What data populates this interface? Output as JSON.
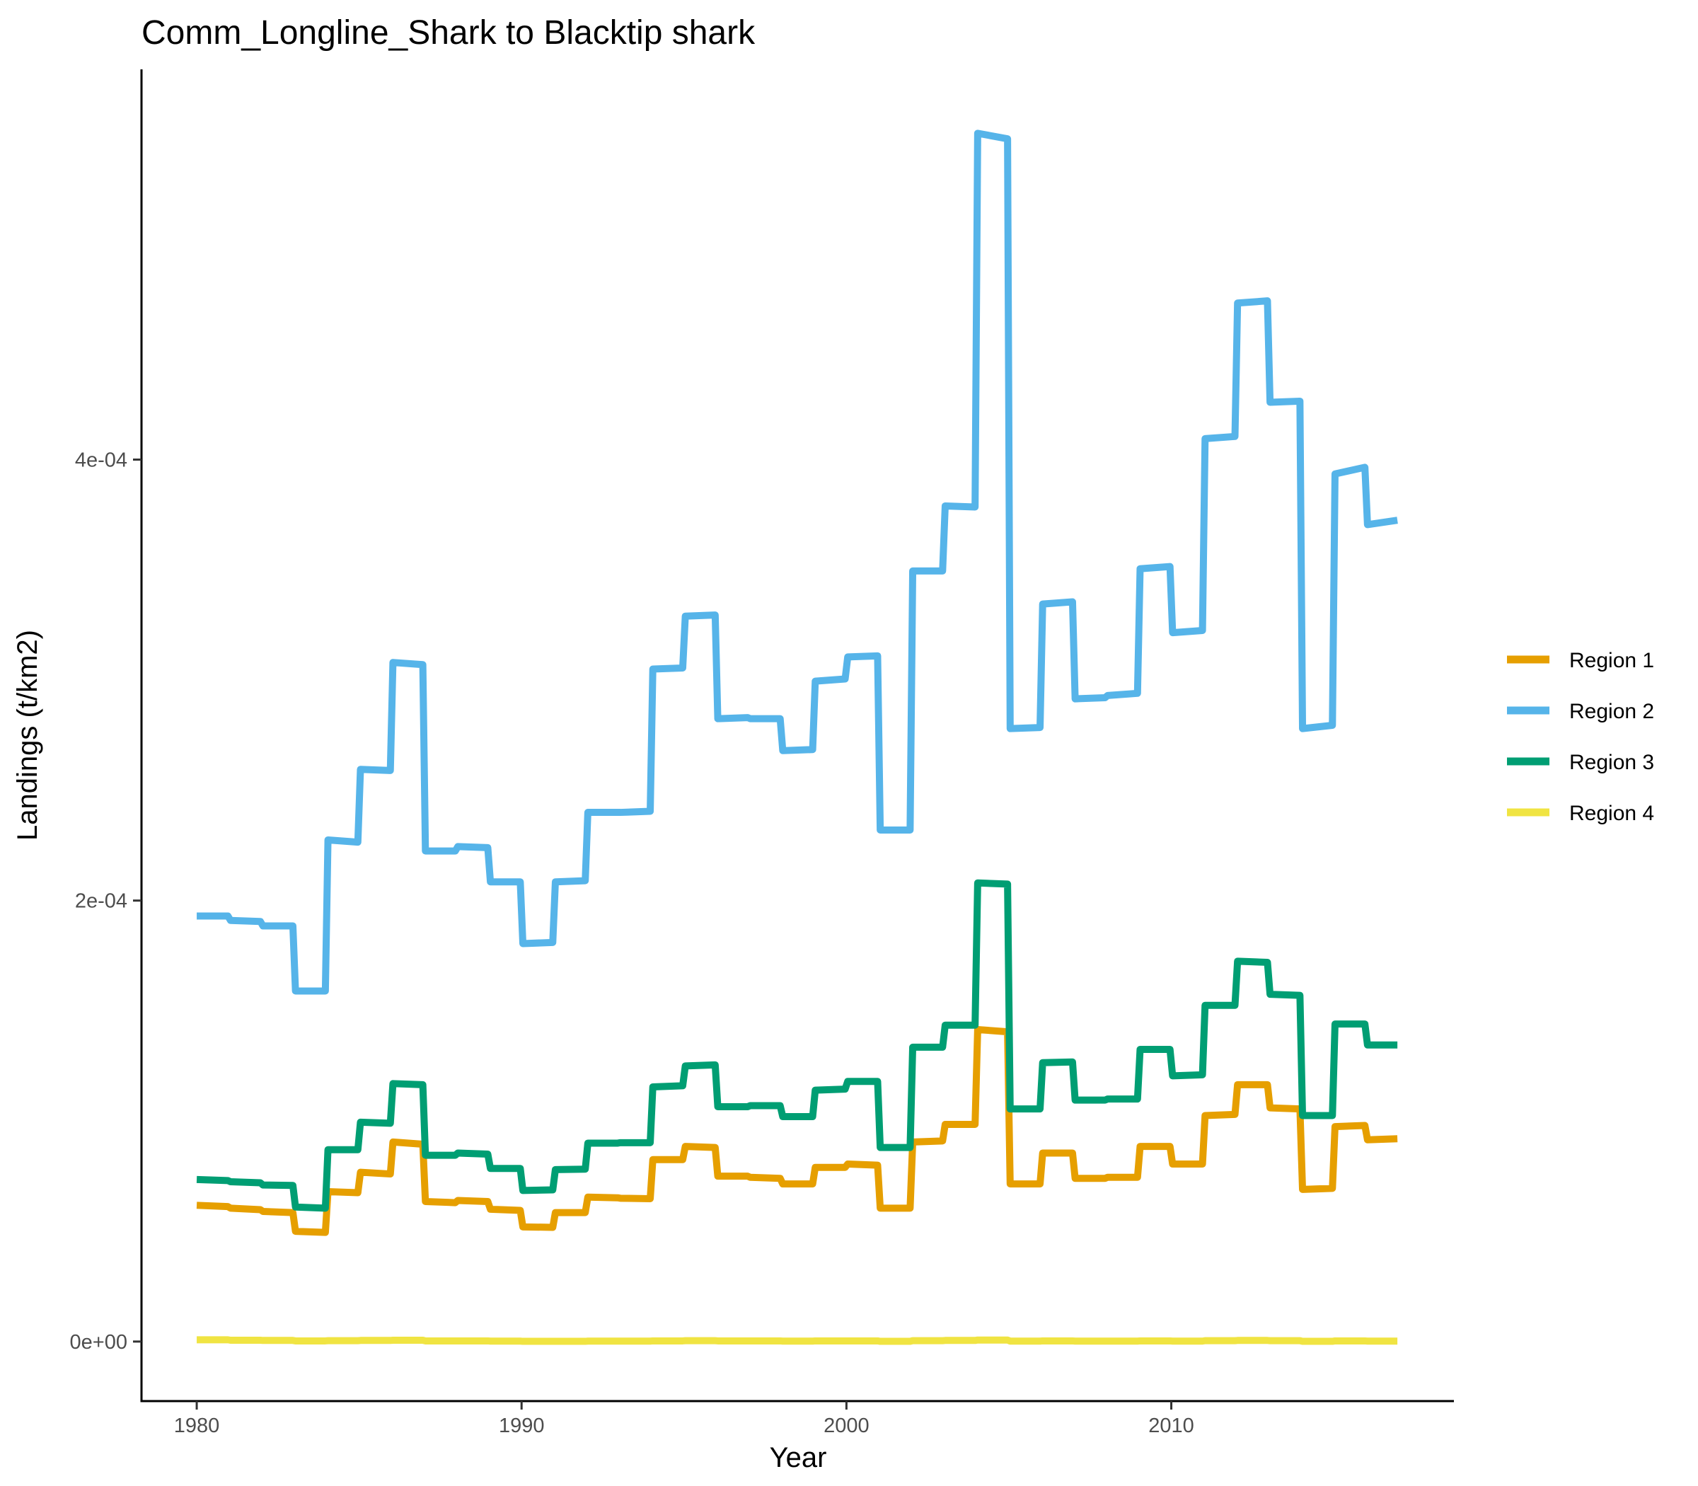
{
  "chart_data": {
    "type": "line",
    "title": "Comm_Longline_Shark to Blacktip shark",
    "xlabel": "Year",
    "ylabel": "Landings (t/km2)",
    "xlim": [
      1978.3,
      2018.7
    ],
    "ylim": [
      -2.7e-05,
      0.000577
    ],
    "x_ticks": [
      1980,
      1990,
      2000,
      2010
    ],
    "x_tick_labels": [
      "1980",
      "1990",
      "2000",
      "2010"
    ],
    "y_ticks": [
      0,
      0.0002,
      0.0004
    ],
    "y_tick_labels": [
      "0e+00",
      "2e-04",
      "4e-04"
    ],
    "grid": false,
    "legend_position": "right",
    "x": [
      1980.0,
      1980.96,
      1981.04,
      1981.96,
      1982.04,
      1982.96,
      1983.04,
      1983.96,
      1984.04,
      1984.96,
      1985.04,
      1985.96,
      1986.04,
      1986.96,
      1987.04,
      1987.96,
      1988.04,
      1988.96,
      1989.04,
      1989.96,
      1990.04,
      1990.96,
      1991.04,
      1991.96,
      1992.04,
      1992.96,
      1993.04,
      1993.96,
      1994.04,
      1994.96,
      1995.04,
      1995.96,
      1996.04,
      1996.96,
      1997.04,
      1997.96,
      1998.04,
      1998.96,
      1999.04,
      1999.96,
      2000.04,
      2000.96,
      2001.04,
      2001.96,
      2002.04,
      2002.96,
      2003.04,
      2003.96,
      2004.04,
      2004.96,
      2005.04,
      2005.96,
      2006.04,
      2006.96,
      2007.04,
      2007.96,
      2008.04,
      2008.96,
      2009.04,
      2009.96,
      2010.04,
      2010.96,
      2011.04,
      2011.96,
      2012.04,
      2012.96,
      2013.04,
      2013.96,
      2014.04,
      2014.96,
      2015.04,
      2015.96,
      2016.04,
      2016.96
    ],
    "series": [
      {
        "name": "Region 1",
        "color": "#E69F00",
        "values": [
          6.18e-05,
          6.12e-05,
          6.05e-05,
          5.98e-05,
          5.9e-05,
          5.85e-05,
          5e-05,
          4.95e-05,
          6.8e-05,
          6.75e-05,
          7.68e-05,
          7.6e-05,
          9.05e-05,
          8.95e-05,
          6.35e-05,
          6.3e-05,
          6.4e-05,
          6.35e-05,
          6e-05,
          5.95e-05,
          5.2e-05,
          5.18e-05,
          5.85e-05,
          5.85e-05,
          6.55e-05,
          6.52e-05,
          6.5e-05,
          6.48e-05,
          8.25e-05,
          8.25e-05,
          8.85e-05,
          8.8e-05,
          7.5e-05,
          7.5e-05,
          7.45e-05,
          7.4e-05,
          7.15e-05,
          7.15e-05,
          7.9e-05,
          7.9e-05,
          8.05e-05,
          8e-05,
          6.05e-05,
          6.05e-05,
          9.05e-05,
          9.1e-05,
          9.85e-05,
          9.85e-05,
          0.0001415,
          0.0001405,
          7.15e-05,
          7.15e-05,
          8.55e-05,
          8.55e-05,
          7.4e-05,
          7.4e-05,
          7.45e-05,
          7.45e-05,
          8.85e-05,
          8.85e-05,
          8.05e-05,
          8.05e-05,
          0.0001025,
          0.000103,
          0.0001165,
          0.0001165,
          0.000106,
          0.0001055,
          6.9e-05,
          6.95e-05,
          9.75e-05,
          9.8e-05,
          9.15e-05,
          9.2e-05
        ]
      },
      {
        "name": "Region 2",
        "color": "#56B4E9",
        "values": [
          0.000193,
          0.000193,
          0.000191,
          0.0001905,
          0.0001885,
          0.0001885,
          0.000159,
          0.000159,
          0.0002275,
          0.0002265,
          0.0002595,
          0.000259,
          0.000308,
          0.000307,
          0.0002225,
          0.0002225,
          0.0002245,
          0.000224,
          0.0002085,
          0.0002085,
          0.0001805,
          0.000181,
          0.0002085,
          0.000209,
          0.00024,
          0.00024,
          0.00024,
          0.0002405,
          0.000305,
          0.0003055,
          0.000329,
          0.0003295,
          0.0002825,
          0.000283,
          0.0002825,
          0.0002825,
          0.000268,
          0.0002685,
          0.0002995,
          0.0003005,
          0.0003105,
          0.000311,
          0.000232,
          0.000232,
          0.0003495,
          0.0003495,
          0.000379,
          0.0003785,
          0.000548,
          0.0005455,
          0.000278,
          0.0002785,
          0.0003345,
          0.0003355,
          0.0002915,
          0.000292,
          0.000293,
          0.000294,
          0.0003505,
          0.0003515,
          0.0003215,
          0.0003225,
          0.0004095,
          0.0004105,
          0.000471,
          0.000472,
          0.000426,
          0.0004265,
          0.000278,
          0.0002795,
          0.0003935,
          0.0003965,
          0.0003705,
          0.0003725
        ]
      },
      {
        "name": "Region 3",
        "color": "#009E73",
        "values": [
          7.35e-05,
          7.3e-05,
          7.25e-05,
          7.2e-05,
          7.1e-05,
          7.08e-05,
          6.1e-05,
          6.05e-05,
          8.7e-05,
          8.7e-05,
          9.95e-05,
          9.9e-05,
          0.000117,
          0.0001165,
          8.45e-05,
          8.45e-05,
          8.55e-05,
          8.5e-05,
          7.85e-05,
          7.85e-05,
          6.85e-05,
          6.88e-05,
          7.8e-05,
          7.82e-05,
          9e-05,
          9e-05,
          9.02e-05,
          9.02e-05,
          0.0001155,
          0.000116,
          0.000125,
          0.0001255,
          0.0001065,
          0.0001065,
          0.000107,
          0.000107,
          0.000102,
          0.000102,
          0.000114,
          0.0001145,
          0.000118,
          0.000118,
          8.8e-05,
          8.8e-05,
          0.0001335,
          0.0001335,
          0.0001435,
          0.0001435,
          0.000208,
          0.0002075,
          0.0001055,
          0.0001055,
          0.0001265,
          0.0001268,
          0.0001095,
          0.0001095,
          0.00011,
          0.00011,
          0.0001325,
          0.0001325,
          0.0001205,
          0.000121,
          0.0001525,
          0.0001525,
          0.0001725,
          0.000172,
          0.0001575,
          0.000157,
          0.0001025,
          0.0001025,
          0.000144,
          0.000144,
          0.0001345,
          0.0001345
        ]
      },
      {
        "name": "Region 4",
        "color": "#F0E442",
        "values": [
          8e-07,
          8e-07,
          6e-07,
          6e-07,
          5e-07,
          5e-07,
          3e-07,
          3e-07,
          4e-07,
          4e-07,
          5e-07,
          5e-07,
          6e-07,
          6e-07,
          3e-07,
          3e-07,
          3e-07,
          3e-07,
          2e-07,
          2e-07,
          1e-07,
          1e-07,
          1e-07,
          1e-07,
          2e-07,
          2e-07,
          2e-07,
          2e-07,
          3e-07,
          3e-07,
          4e-07,
          4e-07,
          3e-07,
          3e-07,
          3e-07,
          3e-07,
          2e-07,
          2e-07,
          3e-07,
          3e-07,
          3e-07,
          3e-07,
          1e-07,
          1e-07,
          4e-07,
          4e-07,
          5e-07,
          5e-07,
          7e-07,
          7e-07,
          2e-07,
          2e-07,
          3e-07,
          3e-07,
          2e-07,
          2e-07,
          2e-07,
          2e-07,
          3e-07,
          3e-07,
          2e-07,
          2e-07,
          4e-07,
          4e-07,
          5e-07,
          5e-07,
          4e-07,
          4e-07,
          1e-07,
          1e-07,
          3e-07,
          3e-07,
          2e-07,
          2e-07
        ]
      }
    ]
  }
}
